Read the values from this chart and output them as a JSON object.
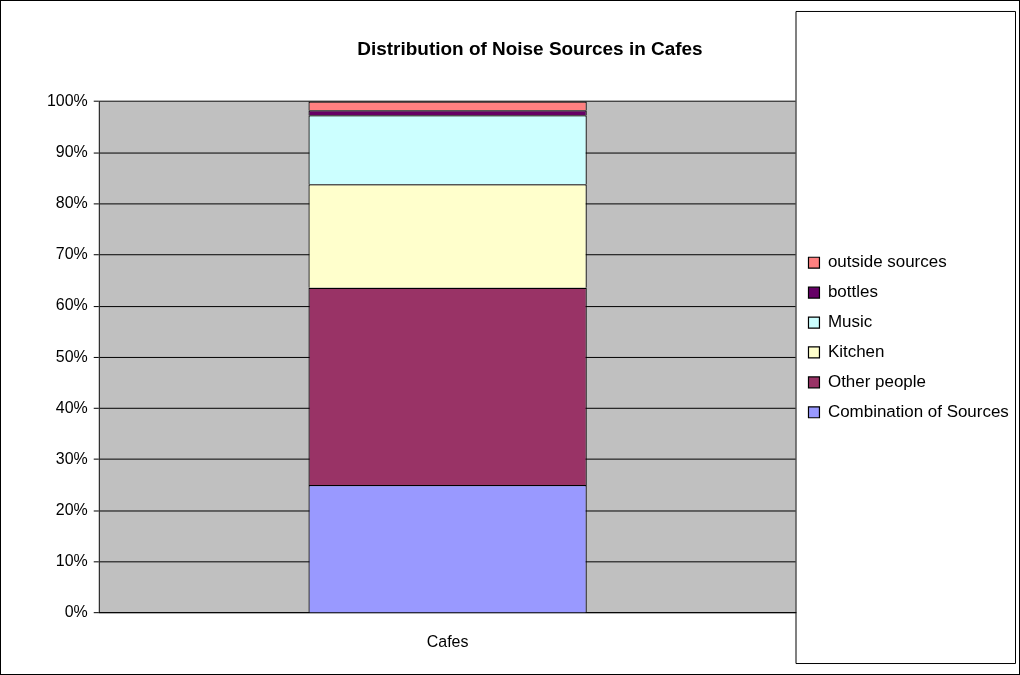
{
  "chart_data": {
    "type": "bar",
    "title": "Distribution of Noise Sources in Cafes",
    "categories": [
      "Cafes"
    ],
    "stacked": true,
    "series": [
      {
        "name": "Combination of Sources",
        "color": "#9999ff",
        "values": [
          25
        ]
      },
      {
        "name": "Other people",
        "color": "#993366",
        "values": [
          38.6
        ]
      },
      {
        "name": "Kitchen",
        "color": "#ffffcc",
        "values": [
          20.2
        ]
      },
      {
        "name": "Music",
        "color": "#ccffff",
        "values": [
          13.5
        ]
      },
      {
        "name": "bottles",
        "color": "#660066",
        "values": [
          1
        ]
      },
      {
        "name": "outside sources",
        "color": "#ff8080",
        "values": [
          1.7
        ]
      }
    ],
    "ylim": [
      0,
      100
    ],
    "yticks": [
      {
        "value": 0,
        "label": "0%"
      },
      {
        "value": 10,
        "label": "10%"
      },
      {
        "value": 20,
        "label": "20%"
      },
      {
        "value": 30,
        "label": "30%"
      },
      {
        "value": 40,
        "label": "40%"
      },
      {
        "value": 50,
        "label": "50%"
      },
      {
        "value": 60,
        "label": "60%"
      },
      {
        "value": 70,
        "label": "70%"
      },
      {
        "value": 80,
        "label": "80%"
      },
      {
        "value": 90,
        "label": "90%"
      },
      {
        "value": 100,
        "label": "100%"
      }
    ],
    "grid": "y",
    "legend": "right"
  }
}
